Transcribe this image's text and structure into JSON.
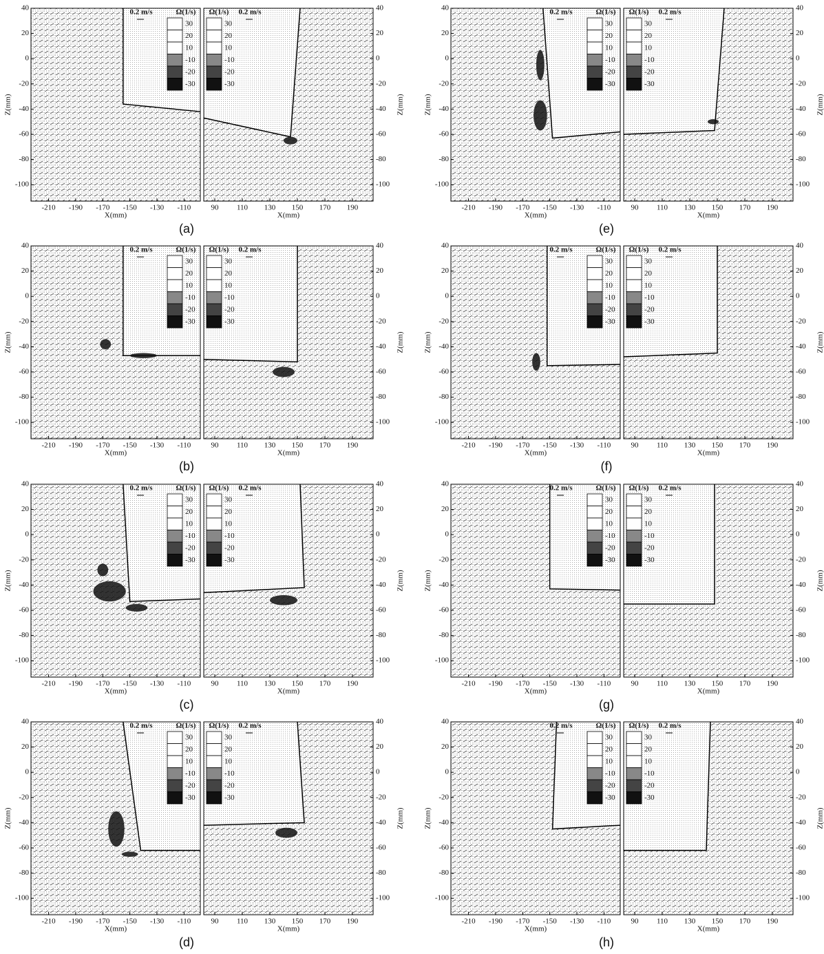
{
  "axes": {
    "left": {
      "xlim": [
        -223,
        -98
      ],
      "xticks": [
        -210,
        -190,
        -170,
        -150,
        -130,
        -110
      ],
      "xlabel": "X(mm)",
      "ylabel": "Z(mm)"
    },
    "right": {
      "xlim": [
        82,
        205
      ],
      "xticks": [
        90,
        110,
        130,
        150,
        170,
        190
      ],
      "xlabel": "X(mm)",
      "ylabel": "Z(mm)"
    },
    "ylim": [
      -113,
      40
    ],
    "yticks": [
      40,
      20,
      0,
      -20,
      -40,
      -60,
      -80,
      -100
    ],
    "legend": {
      "velocity": "0.2 m/s",
      "vorticity": "Ω(1/s)",
      "levels": [
        30,
        20,
        10,
        -10,
        -20,
        -30
      ]
    }
  },
  "chart_data": [
    {
      "type": "vector",
      "label": "(a)",
      "left_body": [
        [
          -155,
          40
        ],
        [
          -155,
          -36
        ],
        [
          -98,
          -42
        ]
      ],
      "right_body": [
        [
          82,
          -47
        ],
        [
          145,
          -62
        ],
        [
          152,
          40
        ]
      ],
      "left_dark": [],
      "right_dark": [
        [
          145,
          -65,
          5,
          3
        ]
      ]
    },
    {
      "type": "vector",
      "label": "(b)",
      "left_body": [
        [
          -155,
          40
        ],
        [
          -155,
          -47
        ],
        [
          -98,
          -47
        ]
      ],
      "right_body": [
        [
          82,
          -50
        ],
        [
          150,
          -52
        ],
        [
          150,
          40
        ]
      ],
      "left_dark": [
        [
          -168,
          -38,
          4,
          4
        ],
        [
          -140,
          -47,
          10,
          2
        ]
      ],
      "right_dark": [
        [
          140,
          -60,
          8,
          4
        ]
      ]
    },
    {
      "type": "vector",
      "label": "(c)",
      "left_body": [
        [
          -155,
          40
        ],
        [
          -150,
          -53
        ],
        [
          -98,
          -51
        ]
      ],
      "right_body": [
        [
          82,
          -46
        ],
        [
          155,
          -42
        ],
        [
          152,
          40
        ]
      ],
      "left_dark": [
        [
          -165,
          -45,
          12,
          8
        ],
        [
          -145,
          -58,
          8,
          3
        ],
        [
          -170,
          -28,
          4,
          5
        ]
      ],
      "right_dark": [
        [
          140,
          -52,
          10,
          4
        ]
      ]
    },
    {
      "type": "vector",
      "label": "(d)",
      "left_body": [
        [
          -155,
          40
        ],
        [
          -142,
          -62
        ],
        [
          -98,
          -62
        ]
      ],
      "right_body": [
        [
          82,
          -42
        ],
        [
          155,
          -40
        ],
        [
          150,
          40
        ]
      ],
      "left_dark": [
        [
          -160,
          -45,
          6,
          14
        ],
        [
          -150,
          -65,
          6,
          2
        ]
      ],
      "right_dark": [
        [
          142,
          -48,
          8,
          4
        ]
      ]
    },
    {
      "type": "vector",
      "label": "(e)",
      "left_body": [
        [
          -155,
          40
        ],
        [
          -148,
          -63
        ],
        [
          -98,
          -58
        ]
      ],
      "right_body": [
        [
          82,
          -60
        ],
        [
          148,
          -57
        ],
        [
          155,
          40
        ]
      ],
      "left_dark": [
        [
          -157,
          -45,
          5,
          12
        ],
        [
          -157,
          -5,
          3,
          12
        ]
      ],
      "right_dark": [
        [
          147,
          -50,
          4,
          2
        ]
      ]
    },
    {
      "type": "vector",
      "label": "(f)",
      "left_body": [
        [
          -152,
          40
        ],
        [
          -152,
          -55
        ],
        [
          -98,
          -54
        ]
      ],
      "right_body": [
        [
          82,
          -48
        ],
        [
          150,
          -45
        ],
        [
          150,
          40
        ]
      ],
      "left_dark": [
        [
          -160,
          -52,
          3,
          7
        ]
      ],
      "right_dark": []
    },
    {
      "type": "vector",
      "label": "(g)",
      "left_body": [
        [
          -150,
          40
        ],
        [
          -150,
          -43
        ],
        [
          -98,
          -44
        ]
      ],
      "right_body": [
        [
          82,
          -55
        ],
        [
          148,
          -55
        ],
        [
          148,
          40
        ]
      ],
      "left_dark": [],
      "right_dark": []
    },
    {
      "type": "vector",
      "label": "(h)",
      "left_body": [
        [
          -145,
          40
        ],
        [
          -148,
          -45
        ],
        [
          -98,
          -42
        ]
      ],
      "right_body": [
        [
          82,
          -62
        ],
        [
          142,
          -62
        ],
        [
          145,
          40
        ]
      ],
      "left_dark": [],
      "right_dark": []
    }
  ]
}
